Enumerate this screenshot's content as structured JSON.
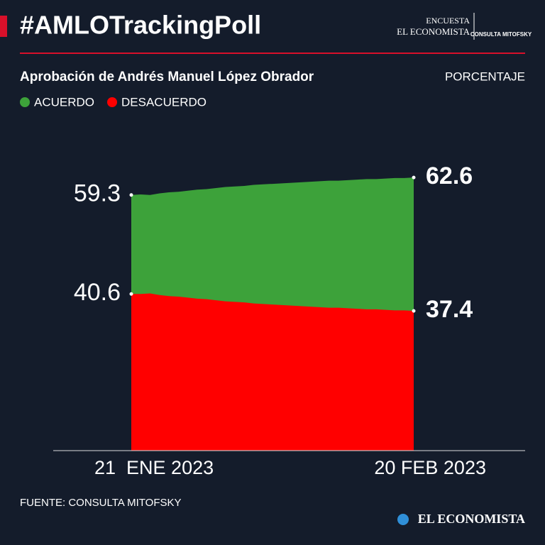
{
  "header": {
    "title": "#AMLOTrackingPoll",
    "logo_top": "ENCUESTA",
    "logo_bottom": "EL ECONOMISTA",
    "partner": "CONSULTA MITOFSKY"
  },
  "chart_data": {
    "type": "area",
    "title": "Aprobación de Andrés Manuel López Obrador",
    "unit": "PORCENTAJE",
    "x": [
      "2023-01-21",
      "2023-01-22",
      "2023-01-23",
      "2023-01-24",
      "2023-01-25",
      "2023-01-26",
      "2023-01-27",
      "2023-01-28",
      "2023-01-29",
      "2023-01-30",
      "2023-01-31",
      "2023-02-01",
      "2023-02-02",
      "2023-02-03",
      "2023-02-04",
      "2023-02-05",
      "2023-02-06",
      "2023-02-07",
      "2023-02-08",
      "2023-02-09",
      "2023-02-10",
      "2023-02-11",
      "2023-02-12",
      "2023-02-13",
      "2023-02-14",
      "2023-02-15",
      "2023-02-16",
      "2023-02-17",
      "2023-02-18",
      "2023-02-19",
      "2023-02-20"
    ],
    "xlim": [
      "2023-01-21",
      "2023-02-20"
    ],
    "xticks": [
      {
        "value": "2023-01-21",
        "label": "21  ENE 2023"
      },
      {
        "value": "2023-02-20",
        "label": "20 FEB 2023"
      }
    ],
    "ylim": [
      11,
      72
    ],
    "series": [
      {
        "name": "ACUERDO",
        "color": "#3da23a",
        "values": [
          59.3,
          59.4,
          59.3,
          59.6,
          59.8,
          59.9,
          60.1,
          60.3,
          60.4,
          60.6,
          60.8,
          60.9,
          61.0,
          61.2,
          61.3,
          61.4,
          61.5,
          61.6,
          61.7,
          61.8,
          61.9,
          62.0,
          62.0,
          62.1,
          62.2,
          62.3,
          62.3,
          62.4,
          62.5,
          62.5,
          62.6
        ]
      },
      {
        "name": "DESACUERDO",
        "color": "#ff0000",
        "values": [
          40.6,
          40.6,
          40.7,
          40.4,
          40.2,
          40.1,
          39.9,
          39.7,
          39.6,
          39.4,
          39.2,
          39.1,
          39.0,
          38.8,
          38.7,
          38.6,
          38.5,
          38.4,
          38.3,
          38.2,
          38.1,
          38.0,
          38.0,
          37.9,
          37.8,
          37.7,
          37.7,
          37.6,
          37.5,
          37.5,
          37.4
        ]
      }
    ]
  },
  "footer": {
    "source": "FUENTE: CONSULTA MITOFSKY",
    "brand": "EL ECONOMISTA"
  }
}
